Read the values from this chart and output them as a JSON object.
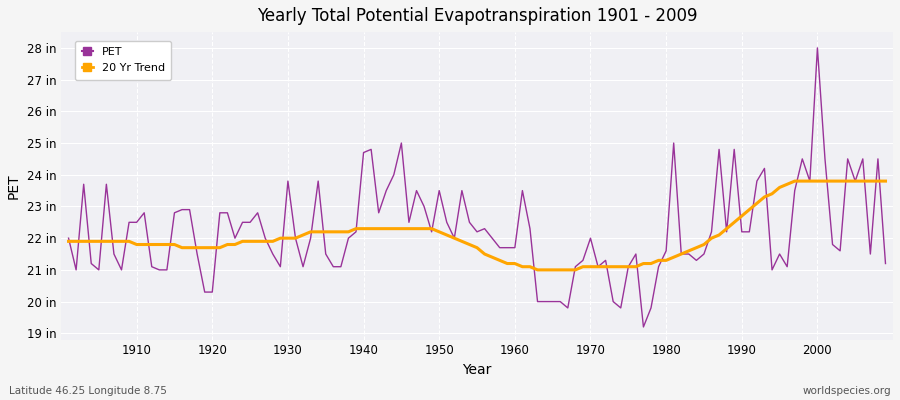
{
  "title": "Yearly Total Potential Evapotranspiration 1901 - 2009",
  "xlabel": "Year",
  "ylabel": "PET",
  "pet_color": "#993399",
  "trend_color": "#FFA500",
  "bg_color": "#f5f5f5",
  "plot_bg_color": "#f0f0f4",
  "ylim": [
    18.8,
    28.5
  ],
  "xlim": [
    1900,
    2010
  ],
  "yticks": [
    19,
    20,
    21,
    22,
    23,
    24,
    25,
    26,
    27,
    28
  ],
  "ytick_labels": [
    "19 in",
    "20 in",
    "21 in",
    "22 in",
    "23 in",
    "24 in",
    "25 in",
    "26 in",
    "27 in",
    "28 in"
  ],
  "xticks": [
    1910,
    1920,
    1930,
    1940,
    1950,
    1960,
    1970,
    1980,
    1990,
    2000
  ],
  "years": [
    1901,
    1902,
    1903,
    1904,
    1905,
    1906,
    1907,
    1908,
    1909,
    1910,
    1911,
    1912,
    1913,
    1914,
    1915,
    1916,
    1917,
    1918,
    1919,
    1920,
    1921,
    1922,
    1923,
    1924,
    1925,
    1926,
    1927,
    1928,
    1929,
    1930,
    1931,
    1932,
    1933,
    1934,
    1935,
    1936,
    1937,
    1938,
    1939,
    1940,
    1941,
    1942,
    1943,
    1944,
    1945,
    1946,
    1947,
    1948,
    1949,
    1950,
    1951,
    1952,
    1953,
    1954,
    1955,
    1956,
    1957,
    1958,
    1959,
    1960,
    1961,
    1962,
    1963,
    1964,
    1965,
    1966,
    1967,
    1968,
    1969,
    1970,
    1971,
    1972,
    1973,
    1974,
    1975,
    1976,
    1977,
    1978,
    1979,
    1980,
    1981,
    1982,
    1983,
    1984,
    1985,
    1986,
    1987,
    1988,
    1989,
    1990,
    1991,
    1992,
    1993,
    1994,
    1995,
    1996,
    1997,
    1998,
    1999,
    2000,
    2001,
    2002,
    2003,
    2004,
    2005,
    2006,
    2007,
    2008,
    2009
  ],
  "pet_values": [
    22.0,
    21.0,
    23.7,
    21.2,
    21.0,
    23.7,
    21.5,
    21.0,
    22.5,
    22.5,
    22.8,
    21.1,
    21.0,
    21.0,
    22.8,
    22.9,
    22.9,
    21.5,
    20.3,
    20.3,
    22.8,
    22.8,
    22.0,
    22.5,
    22.5,
    22.8,
    22.0,
    21.5,
    21.1,
    23.8,
    22.0,
    21.1,
    22.0,
    23.8,
    21.5,
    21.1,
    21.1,
    22.0,
    22.2,
    24.7,
    24.8,
    22.8,
    23.5,
    24.0,
    25.0,
    22.5,
    23.5,
    23.0,
    22.2,
    23.5,
    22.5,
    22.0,
    23.5,
    22.5,
    22.2,
    22.3,
    22.0,
    21.7,
    21.7,
    21.7,
    23.5,
    22.3,
    20.0,
    20.0,
    20.0,
    20.0,
    19.8,
    21.1,
    21.3,
    22.0,
    21.1,
    21.3,
    20.0,
    19.8,
    21.1,
    21.5,
    19.2,
    19.8,
    21.1,
    21.6,
    25.0,
    21.5,
    21.5,
    21.3,
    21.5,
    22.2,
    24.8,
    22.2,
    24.8,
    22.2,
    22.2,
    23.8,
    24.2,
    21.0,
    21.5,
    21.1,
    23.5,
    24.5,
    23.8,
    28.0,
    24.5,
    21.8,
    21.6,
    24.5,
    23.8,
    24.5,
    21.5,
    24.5,
    21.2
  ],
  "trend_values": [
    21.9,
    21.9,
    21.9,
    21.9,
    21.9,
    21.9,
    21.9,
    21.9,
    21.9,
    21.8,
    21.8,
    21.8,
    21.8,
    21.8,
    21.8,
    21.7,
    21.7,
    21.7,
    21.7,
    21.7,
    21.7,
    21.8,
    21.8,
    21.9,
    21.9,
    21.9,
    21.9,
    21.9,
    22.0,
    22.0,
    22.0,
    22.1,
    22.2,
    22.2,
    22.2,
    22.2,
    22.2,
    22.2,
    22.3,
    22.3,
    22.3,
    22.3,
    22.3,
    22.3,
    22.3,
    22.3,
    22.3,
    22.3,
    22.3,
    22.2,
    22.1,
    22.0,
    21.9,
    21.8,
    21.7,
    21.5,
    21.4,
    21.3,
    21.2,
    21.2,
    21.1,
    21.1,
    21.0,
    21.0,
    21.0,
    21.0,
    21.0,
    21.0,
    21.1,
    21.1,
    21.1,
    21.1,
    21.1,
    21.1,
    21.1,
    21.1,
    21.2,
    21.2,
    21.3,
    21.3,
    21.4,
    21.5,
    21.6,
    21.7,
    21.8,
    22.0,
    22.1,
    22.3,
    22.5,
    22.7,
    22.9,
    23.1,
    23.3,
    23.4,
    23.6,
    23.7,
    23.8,
    23.8,
    23.8,
    23.8,
    23.8,
    23.8,
    23.8,
    23.8,
    23.8,
    23.8,
    23.8,
    23.8,
    23.8
  ],
  "bottom_left_text": "Latitude 46.25 Longitude 8.75",
  "bottom_right_text": "worldspecies.org"
}
